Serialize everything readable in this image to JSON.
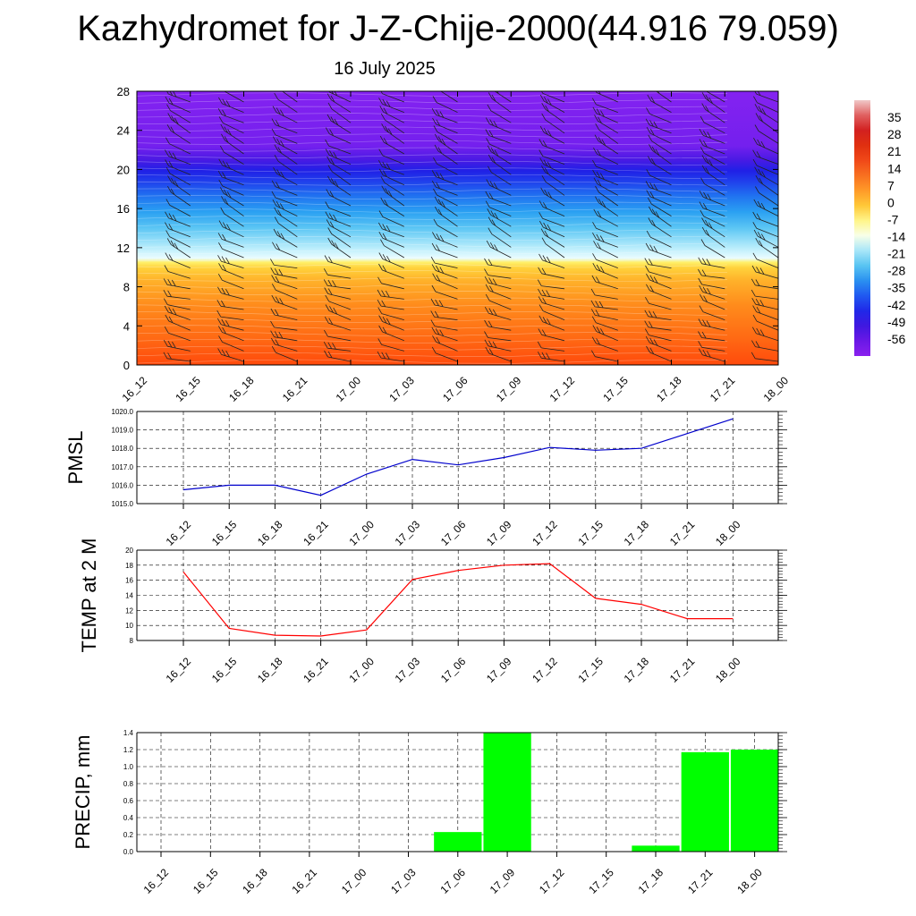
{
  "header": {
    "title": "Kazhydromet for J-Z-Chije-2000(44.916 79.059)",
    "subtitle": "16 July 2025"
  },
  "chart_data": [
    {
      "type": "heatmap",
      "panel": "vertical-profile",
      "x_tick_labels": [
        "16_12",
        "16_15",
        "16_18",
        "16_21",
        "17_00",
        "17_03",
        "17_06",
        "17_09",
        "17_12",
        "17_15",
        "17_18",
        "17_21",
        "18_00"
      ],
      "y_ticks": [
        0,
        4,
        8,
        12,
        16,
        20,
        24,
        28
      ],
      "ylim": [
        0,
        28
      ],
      "colorbar_labels": [
        "35",
        "28",
        "21",
        "14",
        "7",
        "0",
        "-7",
        "-14",
        "-21",
        "-28",
        "-35",
        "-42",
        "-49",
        "-56"
      ],
      "colorbar_colors": [
        "#f0c8c8",
        "#e06060",
        "#d22020",
        "#e03010",
        "#f04818",
        "#f87020",
        "#ff9a28",
        "#ffc838",
        "#fff58a",
        "#f8ffe8",
        "#a8e6f8",
        "#58c4f2",
        "#2a90f0",
        "#2058f0",
        "#2028e8",
        "#4018e0",
        "#6a18e6",
        "#8a20ee"
      ],
      "colorbar_range": [
        -63,
        42
      ],
      "freezing_level": 11,
      "wind_barbs": true
    },
    {
      "type": "line",
      "panel": "pmsl",
      "ylabel": "PMSL",
      "x": [
        "16_12",
        "16_15",
        "16_18",
        "16_21",
        "17_00",
        "17_03",
        "17_06",
        "17_09",
        "17_12",
        "17_15",
        "17_18",
        "17_21",
        "18_00"
      ],
      "y_tick_labels": [
        "1015.0",
        "1016.0",
        "1017.0",
        "1018.0",
        "1019.0",
        "1020.0"
      ],
      "ylim": [
        1015,
        1020
      ],
      "series": [
        {
          "values": [
            1015.75,
            1016.0,
            1016.0,
            1015.45,
            1016.6,
            1017.4,
            1017.1,
            1017.5,
            1018.05,
            1017.9,
            1018.0,
            1018.8,
            1019.6
          ],
          "color": "#0000cc"
        }
      ]
    },
    {
      "type": "line",
      "panel": "temperature",
      "ylabel": "TEMP at 2 M",
      "x": [
        "16_12",
        "16_15",
        "16_18",
        "16_21",
        "17_00",
        "17_03",
        "17_06",
        "17_09",
        "17_12",
        "17_15",
        "17_18",
        "17_21",
        "18_00"
      ],
      "y_tick_labels": [
        "8",
        "10",
        "12",
        "14",
        "16",
        "18",
        "20"
      ],
      "ylim": [
        8,
        20
      ],
      "series": [
        {
          "values": [
            17.1,
            9.6,
            8.7,
            8.6,
            9.4,
            16.1,
            17.3,
            18.0,
            18.2,
            13.6,
            12.8,
            10.9,
            10.9
          ],
          "color": "#ff0000"
        }
      ]
    },
    {
      "type": "bar",
      "panel": "precipitation",
      "ylabel": "PRECIP, mm",
      "categories": [
        "16_12",
        "16_15",
        "16_18",
        "16_21",
        "17_00",
        "17_03",
        "17_06",
        "17_09",
        "17_12",
        "17_15",
        "17_18",
        "17_21",
        "18_00"
      ],
      "y_tick_labels": [
        "0.0",
        "0.2",
        "0.4",
        "0.6",
        "0.8",
        "1.0",
        "1.2",
        "1.4"
      ],
      "ylim": [
        0,
        1.4
      ],
      "values": [
        0,
        0,
        0,
        0,
        0,
        0,
        0.23,
        1.4,
        0,
        0,
        0.07,
        1.17,
        1.2
      ],
      "color": "#00ff00"
    }
  ]
}
